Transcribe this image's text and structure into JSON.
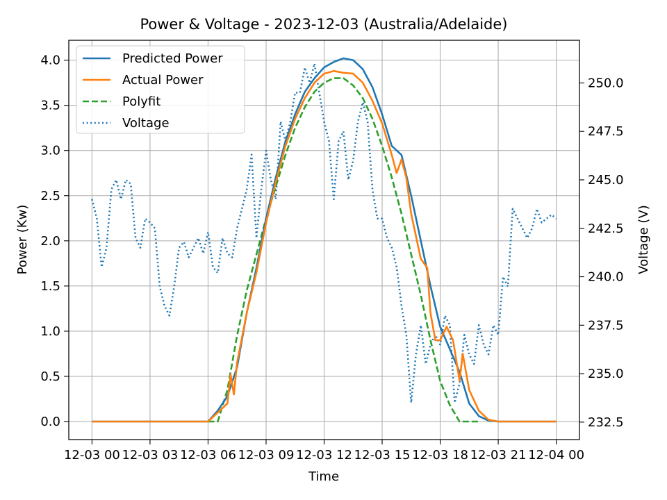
{
  "chart_data": {
    "type": "line",
    "title": "Power & Voltage - 2023-12-03 (Australia/Adelaide)",
    "xlabel": "Time",
    "ylabel": "Power (Kw)",
    "ylabel_right": "Voltage (V)",
    "xlim": [
      "2023-12-02 22:48",
      "2023-12-04 01:12"
    ],
    "ylim": [
      -0.2,
      4.22
    ],
    "ylim_right": [
      231.6,
      252.2
    ],
    "grid": true,
    "legend_position": "top-left",
    "x_ticks": [
      {
        "value": "2023-12-03 00:00",
        "label": "12-03 00"
      },
      {
        "value": "2023-12-03 03:00",
        "label": "12-03 03"
      },
      {
        "value": "2023-12-03 06:00",
        "label": "12-03 06"
      },
      {
        "value": "2023-12-03 09:00",
        "label": "12-03 09"
      },
      {
        "value": "2023-12-03 12:00",
        "label": "12-03 12"
      },
      {
        "value": "2023-12-03 15:00",
        "label": "12-03 15"
      },
      {
        "value": "2023-12-03 18:00",
        "label": "12-03 18"
      },
      {
        "value": "2023-12-03 21:00",
        "label": "12-03 21"
      },
      {
        "value": "2023-12-04 00:00",
        "label": "12-04 00"
      }
    ],
    "y_ticks": [
      "0.0",
      "0.5",
      "1.0",
      "1.5",
      "2.0",
      "2.5",
      "3.0",
      "3.5",
      "4.0"
    ],
    "y_ticks_right": [
      "232.5",
      "235.0",
      "237.5",
      "240.0",
      "242.5",
      "245.0",
      "247.5",
      "250.0"
    ],
    "series": [
      {
        "name": "Predicted Power",
        "axis": "left",
        "color": "#1f77b4",
        "style": "solid",
        "x": [
          "2023-12-03 00:00",
          "2023-12-03 06:00",
          "2023-12-03 06:30",
          "2023-12-03 07:00",
          "2023-12-03 07:30",
          "2023-12-03 08:00",
          "2023-12-03 08:30",
          "2023-12-03 09:00",
          "2023-12-03 09:30",
          "2023-12-03 10:00",
          "2023-12-03 10:30",
          "2023-12-03 11:00",
          "2023-12-03 11:30",
          "2023-12-03 12:00",
          "2023-12-03 12:30",
          "2023-12-03 13:00",
          "2023-12-03 13:30",
          "2023-12-03 14:00",
          "2023-12-03 14:30",
          "2023-12-03 15:00",
          "2023-12-03 15:30",
          "2023-12-03 16:00",
          "2023-12-03 16:30",
          "2023-12-03 17:00",
          "2023-12-03 17:30",
          "2023-12-03 18:00",
          "2023-12-03 18:30",
          "2023-12-03 19:00",
          "2023-12-03 19:30",
          "2023-12-03 20:00",
          "2023-12-03 20:30",
          "2023-12-03 21:00",
          "2023-12-04 00:00"
        ],
        "values": [
          0.0,
          0.0,
          0.12,
          0.28,
          0.6,
          1.2,
          1.7,
          2.25,
          2.7,
          3.1,
          3.4,
          3.65,
          3.8,
          3.92,
          3.98,
          4.02,
          4.0,
          3.9,
          3.7,
          3.4,
          3.05,
          2.95,
          2.5,
          2.0,
          1.5,
          1.05,
          0.8,
          0.55,
          0.2,
          0.06,
          0.01,
          0.0,
          0.0
        ]
      },
      {
        "name": "Actual Power",
        "axis": "left",
        "color": "#ff7f0e",
        "style": "solid",
        "x": [
          "2023-12-03 00:00",
          "2023-12-03 06:00",
          "2023-12-03 06:30",
          "2023-12-03 07:00",
          "2023-12-03 07:10",
          "2023-12-03 07:20",
          "2023-12-03 07:30",
          "2023-12-03 08:00",
          "2023-12-03 08:30",
          "2023-12-03 09:00",
          "2023-12-03 09:30",
          "2023-12-03 10:00",
          "2023-12-03 10:30",
          "2023-12-03 11:00",
          "2023-12-03 11:30",
          "2023-12-03 12:00",
          "2023-12-03 12:30",
          "2023-12-03 13:00",
          "2023-12-03 13:30",
          "2023-12-03 14:00",
          "2023-12-03 14:30",
          "2023-12-03 15:00",
          "2023-12-03 15:30",
          "2023-12-03 15:45",
          "2023-12-03 16:00",
          "2023-12-03 16:15",
          "2023-12-03 16:30",
          "2023-12-03 17:00",
          "2023-12-03 17:20",
          "2023-12-03 17:30",
          "2023-12-03 17:45",
          "2023-12-03 18:00",
          "2023-12-03 18:20",
          "2023-12-03 18:40",
          "2023-12-03 19:00",
          "2023-12-03 19:10",
          "2023-12-03 19:30",
          "2023-12-03 20:00",
          "2023-12-03 20:30",
          "2023-12-03 21:00",
          "2023-12-04 00:00"
        ],
        "values": [
          0.0,
          0.0,
          0.1,
          0.2,
          0.52,
          0.3,
          0.65,
          1.2,
          1.65,
          2.2,
          2.65,
          3.05,
          3.35,
          3.58,
          3.75,
          3.85,
          3.88,
          3.86,
          3.85,
          3.75,
          3.55,
          3.3,
          2.95,
          2.75,
          2.9,
          2.7,
          2.3,
          1.8,
          1.7,
          1.2,
          0.9,
          0.9,
          1.05,
          0.9,
          0.45,
          0.75,
          0.35,
          0.12,
          0.02,
          0.0,
          0.0
        ]
      },
      {
        "name": "Polyfit",
        "axis": "left",
        "color": "#2ca02c",
        "style": "dashed",
        "x": [
          "2023-12-03 06:00",
          "2023-12-03 06:30",
          "2023-12-03 07:00",
          "2023-12-03 07:30",
          "2023-12-03 08:00",
          "2023-12-03 08:30",
          "2023-12-03 09:00",
          "2023-12-03 09:30",
          "2023-12-03 10:00",
          "2023-12-03 10:30",
          "2023-12-03 11:00",
          "2023-12-03 11:30",
          "2023-12-03 12:00",
          "2023-12-03 12:30",
          "2023-12-03 13:00",
          "2023-12-03 13:30",
          "2023-12-03 14:00",
          "2023-12-03 14:30",
          "2023-12-03 15:00",
          "2023-12-03 15:30",
          "2023-12-03 16:00",
          "2023-12-03 16:30",
          "2023-12-03 17:00",
          "2023-12-03 17:30",
          "2023-12-03 18:00",
          "2023-12-03 18:30",
          "2023-12-03 19:00",
          "2023-12-03 19:30",
          "2023-12-03 20:00"
        ],
        "values": [
          0.0,
          0.0,
          0.35,
          0.95,
          1.45,
          1.85,
          2.25,
          2.6,
          2.95,
          3.25,
          3.48,
          3.65,
          3.75,
          3.8,
          3.8,
          3.72,
          3.58,
          3.35,
          3.05,
          2.7,
          2.3,
          1.85,
          1.4,
          0.9,
          0.45,
          0.18,
          0.0,
          0.0,
          0.0
        ]
      },
      {
        "name": "Voltage",
        "axis": "right",
        "color": "#1f77b4",
        "style": "dotted",
        "x": [
          "2023-12-03 00:00",
          "2023-12-03 00:15",
          "2023-12-03 00:30",
          "2023-12-03 00:45",
          "2023-12-03 01:00",
          "2023-12-03 01:15",
          "2023-12-03 01:30",
          "2023-12-03 01:45",
          "2023-12-03 02:00",
          "2023-12-03 02:15",
          "2023-12-03 02:30",
          "2023-12-03 02:45",
          "2023-12-03 03:00",
          "2023-12-03 03:15",
          "2023-12-03 03:30",
          "2023-12-03 03:45",
          "2023-12-03 04:00",
          "2023-12-03 04:15",
          "2023-12-03 04:30",
          "2023-12-03 04:45",
          "2023-12-03 05:00",
          "2023-12-03 05:15",
          "2023-12-03 05:30",
          "2023-12-03 05:45",
          "2023-12-03 06:00",
          "2023-12-03 06:15",
          "2023-12-03 06:30",
          "2023-12-03 06:45",
          "2023-12-03 07:00",
          "2023-12-03 07:15",
          "2023-12-03 07:30",
          "2023-12-03 07:45",
          "2023-12-03 08:00",
          "2023-12-03 08:15",
          "2023-12-03 08:30",
          "2023-12-03 08:45",
          "2023-12-03 09:00",
          "2023-12-03 09:15",
          "2023-12-03 09:30",
          "2023-12-03 09:45",
          "2023-12-03 10:00",
          "2023-12-03 10:15",
          "2023-12-03 10:30",
          "2023-12-03 10:45",
          "2023-12-03 11:00",
          "2023-12-03 11:15",
          "2023-12-03 11:30",
          "2023-12-03 11:45",
          "2023-12-03 12:00",
          "2023-12-03 12:15",
          "2023-12-03 12:30",
          "2023-12-03 12:45",
          "2023-12-03 13:00",
          "2023-12-03 13:15",
          "2023-12-03 13:30",
          "2023-12-03 13:45",
          "2023-12-03 14:00",
          "2023-12-03 14:15",
          "2023-12-03 14:30",
          "2023-12-03 14:45",
          "2023-12-03 15:00",
          "2023-12-03 15:15",
          "2023-12-03 15:30",
          "2023-12-03 15:45",
          "2023-12-03 16:00",
          "2023-12-03 16:15",
          "2023-12-03 16:30",
          "2023-12-03 16:45",
          "2023-12-03 17:00",
          "2023-12-03 17:15",
          "2023-12-03 17:30",
          "2023-12-03 17:45",
          "2023-12-03 18:00",
          "2023-12-03 18:15",
          "2023-12-03 18:30",
          "2023-12-03 18:45",
          "2023-12-03 19:00",
          "2023-12-03 19:15",
          "2023-12-03 19:30",
          "2023-12-03 19:45",
          "2023-12-03 20:00",
          "2023-12-03 20:15",
          "2023-12-03 20:30",
          "2023-12-03 20:45",
          "2023-12-03 21:00",
          "2023-12-03 21:15",
          "2023-12-03 21:30",
          "2023-12-03 21:45",
          "2023-12-03 22:00",
          "2023-12-03 22:15",
          "2023-12-03 22:30",
          "2023-12-03 22:45",
          "2023-12-03 23:00",
          "2023-12-03 23:15",
          "2023-12-03 23:30",
          "2023-12-03 23:45",
          "2023-12-04 00:00"
        ],
        "values": [
          244.0,
          243.0,
          240.5,
          241.5,
          244.5,
          245.0,
          244.0,
          245.0,
          244.8,
          242.0,
          241.5,
          243.0,
          242.8,
          242.5,
          239.5,
          238.5,
          238.0,
          239.5,
          241.5,
          241.8,
          241.0,
          241.5,
          242.0,
          241.2,
          242.3,
          240.5,
          240.2,
          242.0,
          241.2,
          241.0,
          242.5,
          243.5,
          244.5,
          246.3,
          242.0,
          244.5,
          246.5,
          245.0,
          244.0,
          248.0,
          247.0,
          248.0,
          249.5,
          249.5,
          250.8,
          250.0,
          251.0,
          249.5,
          248.0,
          247.0,
          244.0,
          247.0,
          247.5,
          245.0,
          246.0,
          248.0,
          249.0,
          248.0,
          244.5,
          243.0,
          243.0,
          242.0,
          241.5,
          240.5,
          238.5,
          237.0,
          233.5,
          236.0,
          237.5,
          235.5,
          236.5,
          237.0,
          236.5,
          238.0,
          237.5,
          233.5,
          234.5,
          237.0,
          236.0,
          235.5,
          237.5,
          236.5,
          236.0,
          237.5,
          237.0,
          240.0,
          239.5,
          243.5,
          243.0,
          242.5,
          242.0,
          242.5,
          243.5,
          242.8,
          243.0,
          243.2,
          243.0
        ]
      }
    ]
  }
}
